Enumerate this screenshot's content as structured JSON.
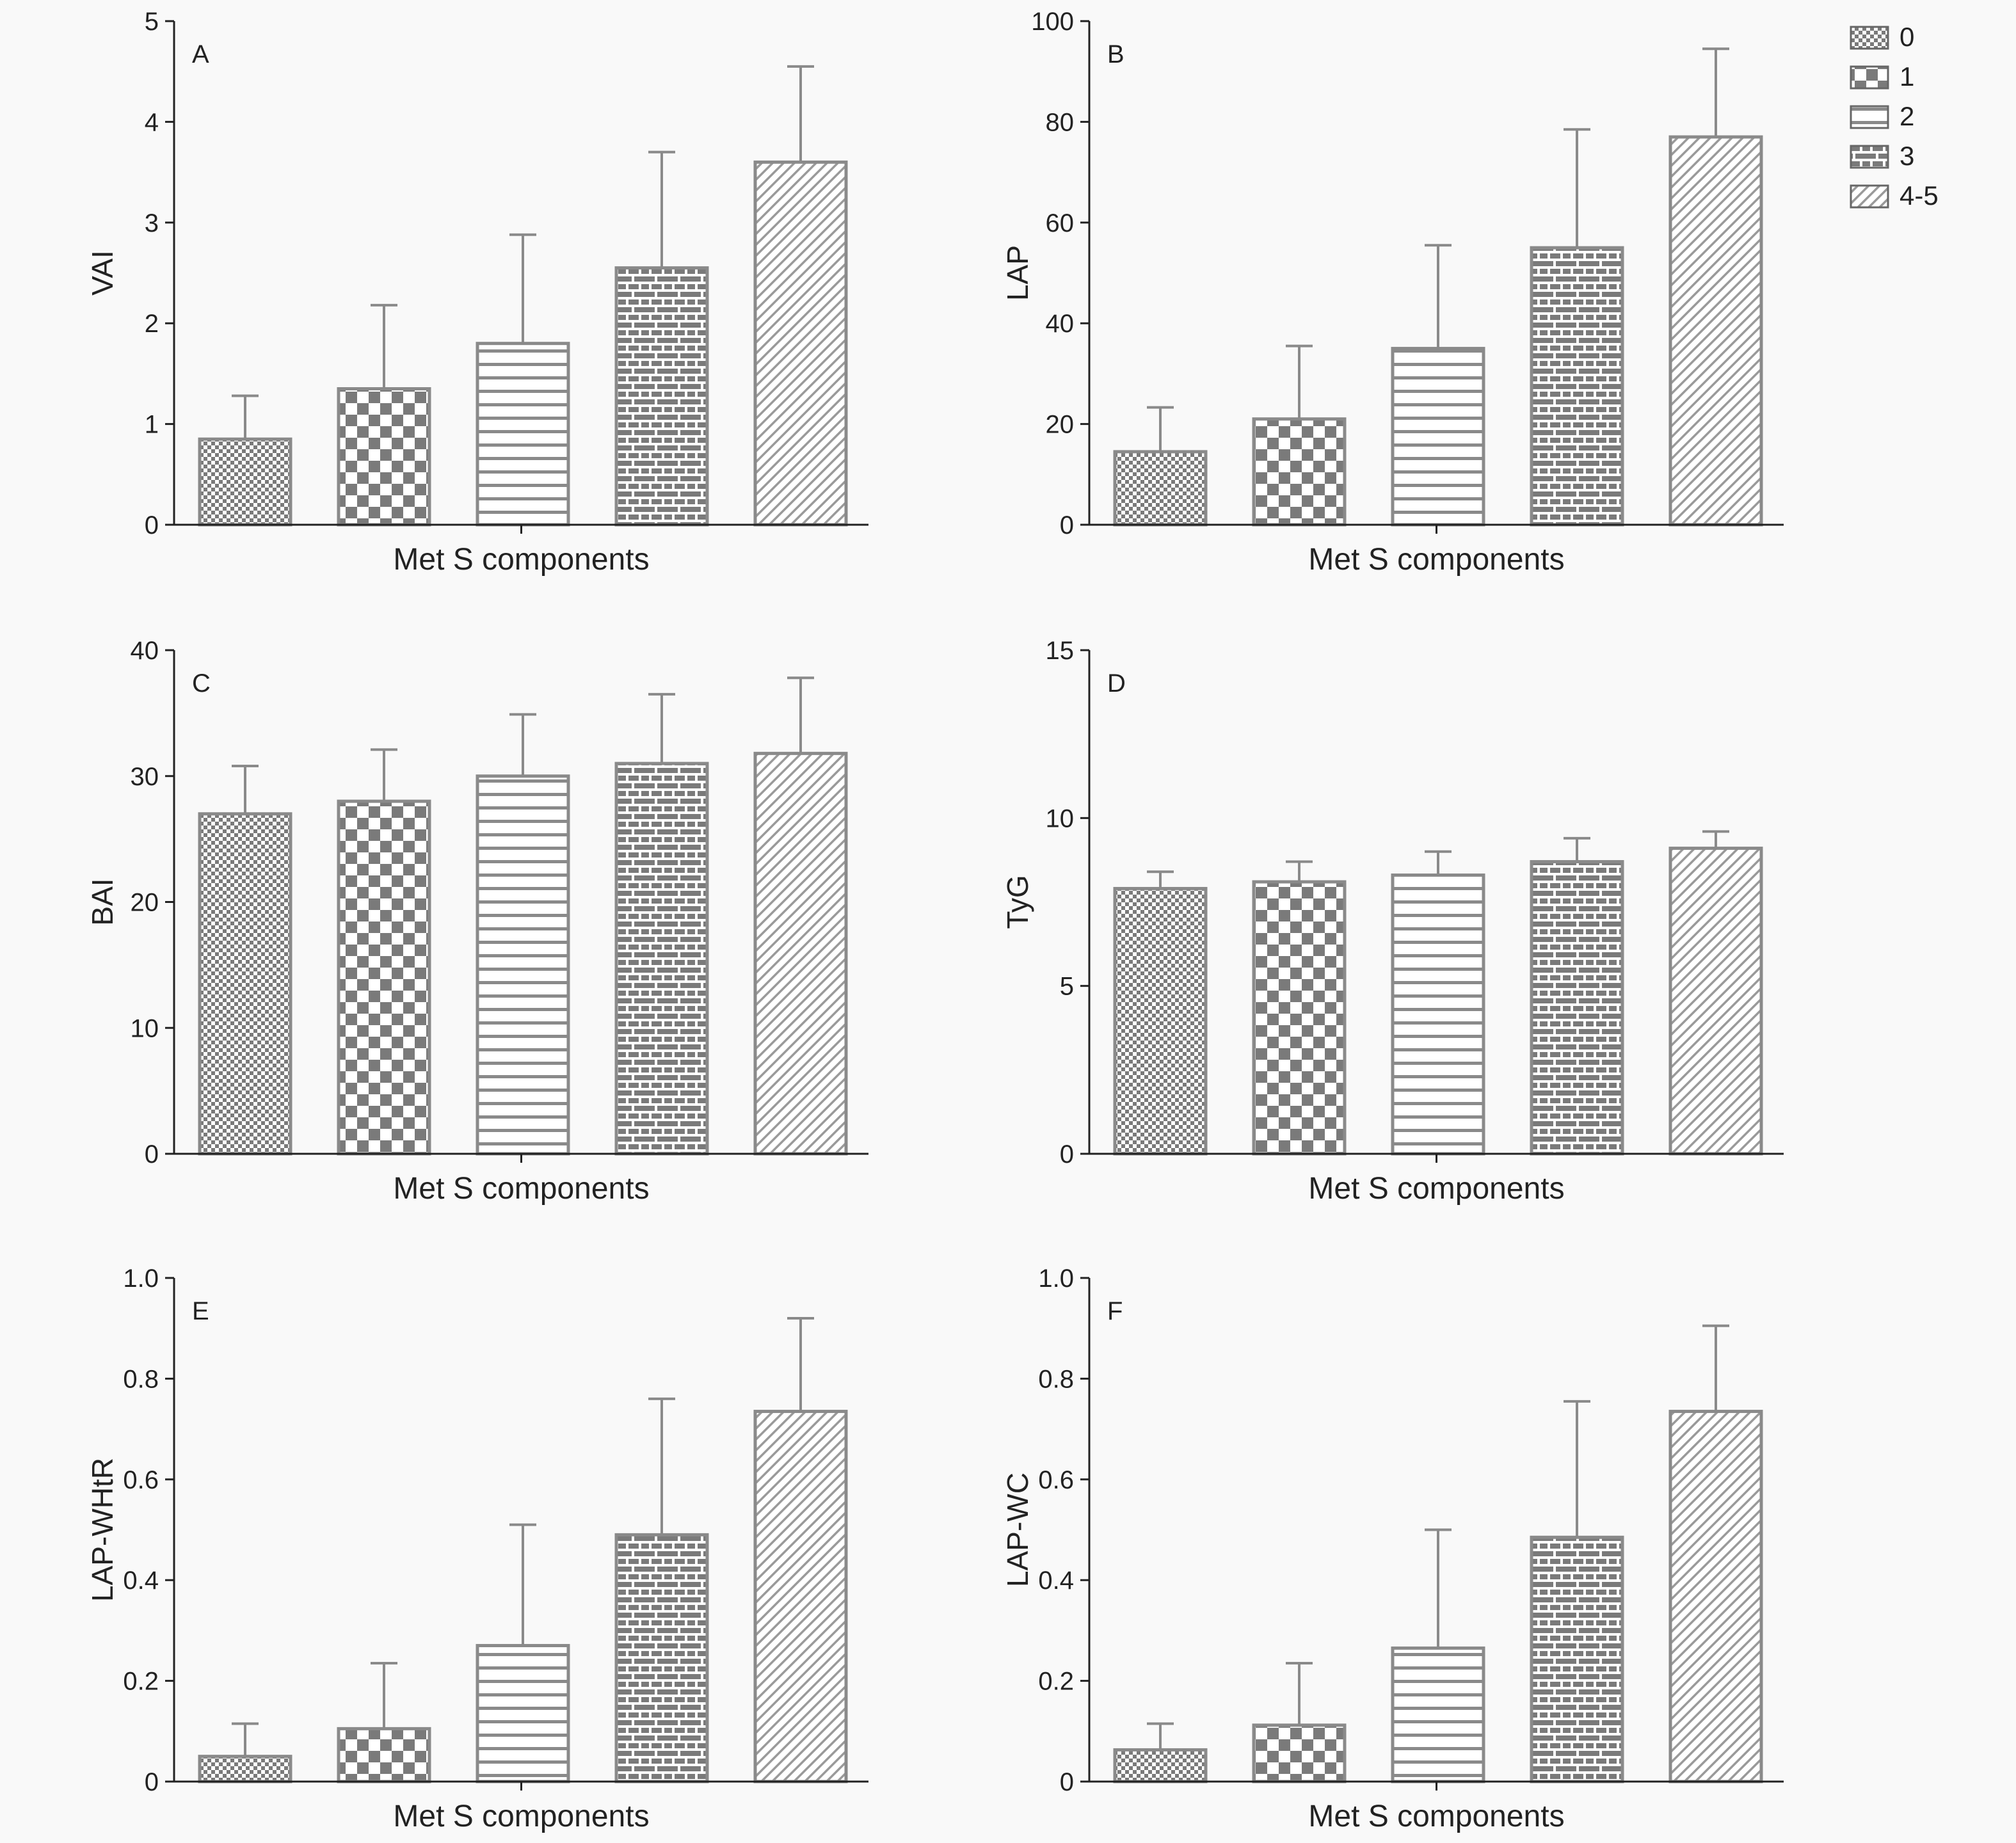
{
  "legend": {
    "items": [
      {
        "label": "0",
        "pattern": "pat-p0"
      },
      {
        "label": "1",
        "pattern": "pat-p1"
      },
      {
        "label": "2",
        "pattern": "pat-p2"
      },
      {
        "label": "3",
        "pattern": "pat-p3"
      },
      {
        "label": "4-5",
        "pattern": "pat-p4"
      }
    ]
  },
  "colors": {
    "axis": "#222222",
    "bar_stroke": "#8a8a8a",
    "error_bar": "#8a8a8a",
    "fill_dark": "#7a7a7a",
    "background": "#f9f9f9"
  },
  "chart_data": [
    {
      "type": "bar",
      "panel_label": "A",
      "categories": [
        "0",
        "1",
        "2",
        "3",
        "4-5"
      ],
      "values": [
        0.85,
        1.35,
        1.8,
        2.55,
        3.6
      ],
      "errors": [
        0.43,
        0.83,
        1.08,
        1.15,
        0.95
      ],
      "xlabel": "Met S components",
      "ylabel": "VAI",
      "ylim": [
        0,
        5
      ],
      "yticks": [
        0,
        1,
        2,
        3,
        4,
        5
      ],
      "ytick_labels": [
        "0",
        "1",
        "2",
        "3",
        "4",
        "5"
      ]
    },
    {
      "type": "bar",
      "panel_label": "B",
      "categories": [
        "0",
        "1",
        "2",
        "3",
        "4-5"
      ],
      "values": [
        14.5,
        21,
        35,
        55,
        77
      ],
      "errors": [
        8.8,
        14.5,
        20.5,
        23.5,
        17.5
      ],
      "xlabel": "Met S components",
      "ylabel": "LAP",
      "ylim": [
        0,
        100
      ],
      "yticks": [
        0,
        20,
        40,
        60,
        80,
        100
      ],
      "ytick_labels": [
        "0",
        "20",
        "40",
        "60",
        "80",
        "100"
      ]
    },
    {
      "type": "bar",
      "panel_label": "C",
      "categories": [
        "0",
        "1",
        "2",
        "3",
        "4-5"
      ],
      "values": [
        27,
        28,
        30,
        31,
        31.8
      ],
      "errors": [
        3.8,
        4.1,
        4.9,
        5.5,
        6
      ],
      "xlabel": "Met S components",
      "ylabel": "BAI",
      "ylim": [
        0,
        40
      ],
      "yticks": [
        0,
        10,
        20,
        30,
        40
      ],
      "ytick_labels": [
        "0",
        "10",
        "20",
        "30",
        "40"
      ]
    },
    {
      "type": "bar",
      "panel_label": "D",
      "categories": [
        "0",
        "1",
        "2",
        "3",
        "4-5"
      ],
      "values": [
        7.9,
        8.1,
        8.3,
        8.7,
        9.1
      ],
      "errors": [
        0.5,
        0.6,
        0.7,
        0.7,
        0.5
      ],
      "xlabel": "Met S components",
      "ylabel": "TyG",
      "ylim": [
        0,
        15
      ],
      "yticks": [
        0,
        5,
        10,
        15
      ],
      "ytick_labels": [
        "0",
        "5",
        "10",
        "15"
      ]
    },
    {
      "type": "bar",
      "panel_label": "E",
      "categories": [
        "0",
        "1",
        "2",
        "3",
        "4-5"
      ],
      "values": [
        0.05,
        0.105,
        0.27,
        0.49,
        0.735
      ],
      "errors": [
        0.065,
        0.13,
        0.24,
        0.27,
        0.185
      ],
      "xlabel": "Met S components",
      "ylabel": "LAP-WHtR",
      "ylim": [
        0,
        1
      ],
      "yticks": [
        0,
        0.2,
        0.4,
        0.6,
        0.8,
        1.0
      ],
      "ytick_labels": [
        "0",
        "0.2",
        "0.4",
        "0.6",
        "0.8",
        "1.0"
      ]
    },
    {
      "type": "bar",
      "panel_label": "F",
      "categories": [
        "0",
        "1",
        "2",
        "3",
        "4-5"
      ],
      "values": [
        0.063,
        0.112,
        0.265,
        0.485,
        0.735
      ],
      "errors": [
        0.052,
        0.123,
        0.235,
        0.27,
        0.17
      ],
      "xlabel": "Met S components",
      "ylabel": "LAP-WC",
      "ylim": [
        0,
        1
      ],
      "yticks": [
        0,
        0.2,
        0.4,
        0.6,
        0.8,
        1.0
      ],
      "ytick_labels": [
        "0",
        "0.2",
        "0.4",
        "0.6",
        "0.8",
        "1.0"
      ]
    }
  ]
}
